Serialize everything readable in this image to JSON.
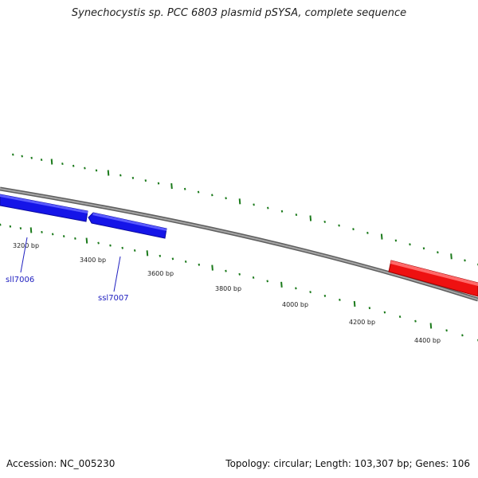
{
  "title": "Synechocystis sp. PCC 6803 plasmid pSYSA, complete sequence",
  "footer": {
    "accession": "Accession: NC_005230",
    "summary": "Topology: circular; Length: 103,307 bp; Genes: 106"
  },
  "ruler_labels": [
    "3200 bp",
    "3400 bp",
    "3600 bp",
    "3800 bp",
    "4000 bp",
    "4200 bp",
    "4400 bp"
  ],
  "genes": [
    {
      "name": "sll7006",
      "strand": "reverse",
      "color": "#1515e8"
    },
    {
      "name": "ssl7007",
      "strand": "reverse",
      "color": "#1515e8"
    },
    {
      "name": "",
      "strand": "forward",
      "color": "#ee1111"
    }
  ],
  "colors": {
    "backbone": "#7a7a7a",
    "tick": "#1b7a1b",
    "gene_label": "#2020c0",
    "reverse_gene": "#1515e8",
    "forward_gene": "#ee1111"
  }
}
